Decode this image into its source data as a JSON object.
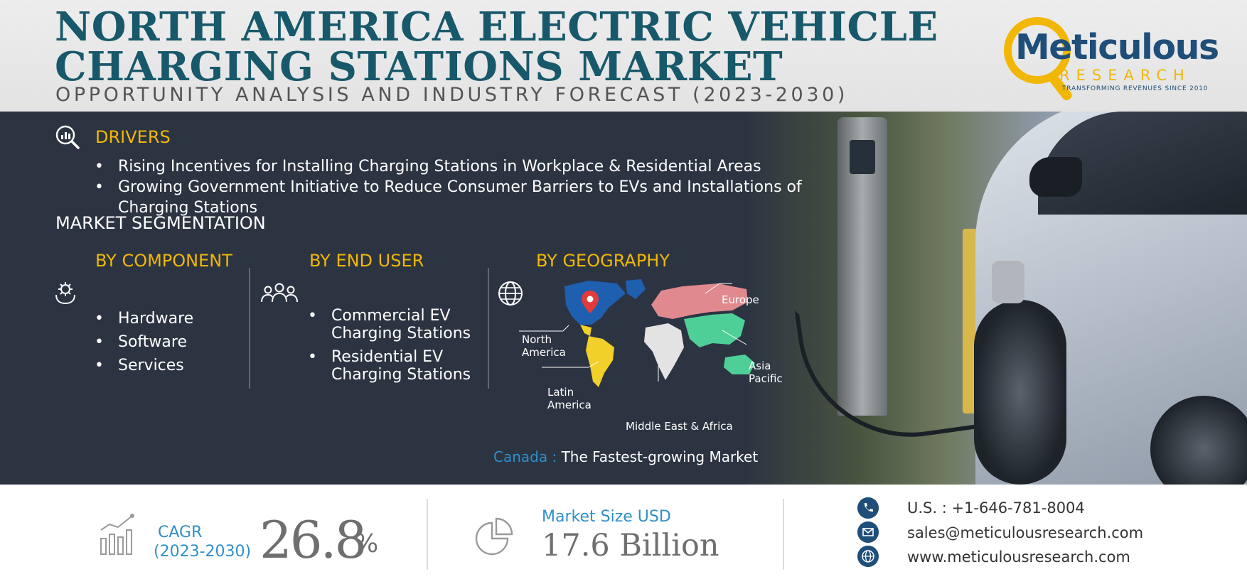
{
  "header": {
    "title_line1": "NORTH AMERICA ELECTRIC VEHICLE",
    "title_line2": "CHARGING STATIONS MARKET",
    "subtitle": "OPPORTUNITY ANALYSIS AND INDUSTRY FORECAST (2023-2030)"
  },
  "logo": {
    "name": "Meticulous",
    "sub": "RESEARCH",
    "tagline": "TRANSFORMING REVENUES SINCE 2010"
  },
  "drivers": {
    "title": "DRIVERS",
    "items": [
      "Rising Incentives for Installing Charging Stations in Workplace & Residential Areas",
      "Growing Government Initiative to Reduce Consumer Barriers to EVs and Installations of Charging Stations"
    ]
  },
  "segmentation": {
    "title": "MARKET SEGMENTATION",
    "component": {
      "title": "BY COMPONENT",
      "items": [
        "Hardware",
        "Software",
        "Services"
      ]
    },
    "end_user": {
      "title": "BY END USER",
      "items": [
        "Commercial EV Charging Stations",
        "Residential EV Charging Stations"
      ]
    },
    "geography": {
      "title": "BY GEOGRAPHY",
      "regions": {
        "north_america": [
          "North",
          "America"
        ],
        "europe": "Europe",
        "asia_pacific": [
          "Asia",
          "Pacific"
        ],
        "latin_america": [
          "Latin",
          "America"
        ],
        "mea": "Middle East & Africa"
      }
    }
  },
  "highlight": {
    "key": "Canada :",
    "value": "The Fastest-growing Market"
  },
  "footer": {
    "cagr_label": "CAGR",
    "cagr_period": "(2023-2030)",
    "cagr_value": "26.8",
    "cagr_unit": "%",
    "market_size_label": "Market Size USD",
    "market_size_value": "17.6 Billion",
    "phone": "U.S. : +1-646-781-8004",
    "email": "sales@meticulousresearch.com",
    "website": "www.meticulousresearch.com"
  },
  "colors": {
    "title": "#17596a",
    "accent_yellow": "#f2b705",
    "accent_blue": "#2f8fc9",
    "band_bg": "#2c3442",
    "logo_blue": "#1f4e79"
  },
  "icons": {
    "drivers": "magnifier-chart-icon",
    "component": "gear-hand-icon",
    "end_user": "people-group-icon",
    "geography": "globe-icon",
    "cagr": "growth-chart-icon",
    "market_size": "pie-chart-icon",
    "phone": "phone-icon",
    "email": "email-icon",
    "website": "globe-icon"
  }
}
